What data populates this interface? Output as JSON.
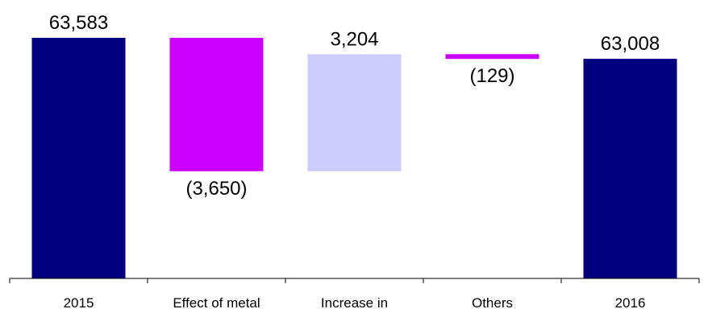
{
  "chart_data": {
    "type": "bar",
    "subtype": "waterfall",
    "title": "",
    "xlabel": "",
    "ylabel": "",
    "categories": [
      "2015",
      "Effect of metal",
      "Increase in",
      "Others",
      "2016"
    ],
    "values": [
      63583,
      -3650,
      3204,
      -129,
      63008
    ],
    "kinds": [
      "total",
      "delta",
      "delta",
      "delta",
      "total"
    ],
    "value_labels": [
      "63,583",
      "(3,650)",
      "3,204",
      "(129)",
      "63,008"
    ],
    "ylim": [
      57000,
      64000
    ],
    "grid": false,
    "legend": "none",
    "colors": {
      "total": "#000080",
      "decrease": "#cc00ff",
      "increase": "#ccccff",
      "axis": "#000000"
    }
  }
}
